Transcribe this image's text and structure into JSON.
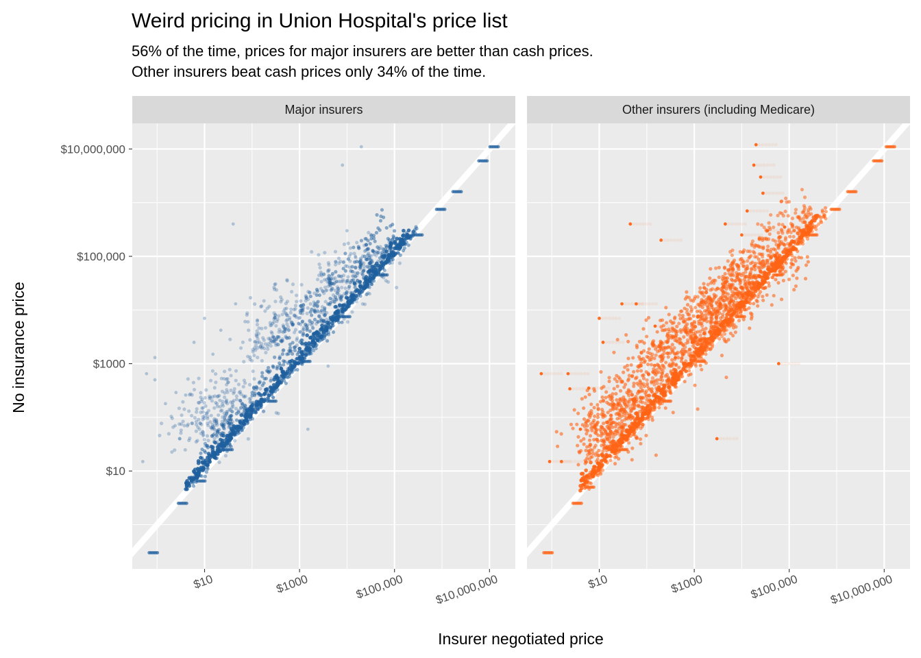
{
  "chart_data": {
    "type": "scatter",
    "title": "Weird pricing in Union Hospital's price list",
    "subtitle_lines": [
      "56% of the time, prices for major insurers are better than cash prices.",
      "Other insurers beat cash prices only 34% of the time."
    ],
    "xlabel": "Insurer negotiated price",
    "ylabel": "No insurance price",
    "x_scale": "log10",
    "y_scale": "log10",
    "xlim": [
      0.3,
      35000000
    ],
    "ylim": [
      0.15,
      30000000
    ],
    "grid": true,
    "legend": "none",
    "reference_line": "y = x",
    "x_ticks": [
      {
        "value": 10,
        "label": "$10"
      },
      {
        "value": 1000,
        "label": "$1000"
      },
      {
        "value": 100000,
        "label": "$100,000"
      },
      {
        "value": 10000000,
        "label": "$10,000,000"
      }
    ],
    "y_ticks": [
      {
        "value": 10,
        "label": "$10"
      },
      {
        "value": 1000,
        "label": "$1000"
      },
      {
        "value": 100000,
        "label": "$100,000"
      },
      {
        "value": 10000000,
        "label": "$10,000,000"
      }
    ],
    "panels": [
      {
        "name": "Major insurers",
        "color": "#1f5f9e",
        "outliers": [
          [
            0.5,
            15
          ],
          [
            0.6,
            650
          ],
          [
            0.9,
            1300
          ],
          [
            0.9,
            500
          ],
          [
            1.5,
            180
          ],
          [
            2.4,
            70
          ],
          [
            2.5,
            290
          ],
          [
            3,
            40
          ],
          [
            4,
            260
          ],
          [
            6,
            2500
          ],
          [
            10,
            7000
          ],
          [
            15,
            1500
          ],
          [
            22,
            4200
          ],
          [
            40,
            400000
          ],
          [
            45,
            13000
          ],
          [
            130,
            6500
          ],
          [
            300,
            30000
          ],
          [
            600,
            1100
          ],
          [
            1500,
            60
          ],
          [
            2000,
            14000
          ],
          [
            4000,
            900
          ],
          [
            8000,
            5000000
          ],
          [
            10000,
            300000
          ],
          [
            20000,
            11000000
          ],
          [
            30000,
            20000
          ],
          [
            15000,
            100000
          ]
        ],
        "clusters": [
          {
            "x": 12,
            "y": 90,
            "spread": 0.35,
            "n": 160
          },
          {
            "x": 40,
            "y": 250,
            "spread": 0.35,
            "n": 90
          },
          {
            "x": 150,
            "y": 2500,
            "spread": 0.3,
            "n": 60
          },
          {
            "x": 300,
            "y": 5000,
            "spread": 0.3,
            "n": 50
          },
          {
            "x": 1000,
            "y": 9000,
            "spread": 0.35,
            "n": 80
          },
          {
            "x": 5000,
            "y": 25000,
            "spread": 0.3,
            "n": 90
          },
          {
            "x": 30000,
            "y": 80000,
            "spread": 0.3,
            "n": 90
          }
        ],
        "bands": [
          {
            "x_from": 5,
            "x_to": 300000,
            "y_ratio": 1.0,
            "spread": 0.12,
            "n": 340
          },
          {
            "x_from": 8,
            "x_to": 100000,
            "y_ratio": 2.5,
            "spread": 0.25,
            "n": 220
          },
          {
            "x_from": 300,
            "x_to": 60000,
            "y_ratio": 8,
            "spread": 0.3,
            "n": 90
          }
        ],
        "dash_rows": [
          [
            0.8,
            0.3
          ],
          [
            3.3,
            2.5
          ],
          [
            8,
            6.5
          ],
          [
            30,
            25
          ],
          [
            250,
            200
          ],
          [
            1300,
            1100
          ],
          [
            9000,
            7500
          ],
          [
            55000,
            45000
          ],
          [
            300000,
            250000
          ],
          [
            900000,
            750000
          ],
          [
            2000000,
            1600000
          ],
          [
            7000000,
            6000000
          ],
          [
            12000000,
            11000000
          ]
        ]
      },
      {
        "name": "Other insurers (including Medicare)",
        "color": "#ff6415",
        "outliers": [
          [
            0.6,
            650
          ],
          [
            0.9,
            15
          ],
          [
            1.6,
            15
          ],
          [
            2.2,
            650
          ],
          [
            2.4,
            340
          ],
          [
            4,
            60
          ],
          [
            6,
            350
          ],
          [
            10,
            7000
          ],
          [
            12,
            2500
          ],
          [
            30,
            13000
          ],
          [
            45,
            400000
          ],
          [
            60,
            13000
          ],
          [
            150,
            5000
          ],
          [
            200,
            200000
          ],
          [
            400,
            1300
          ],
          [
            900,
            2500
          ],
          [
            3000,
            40
          ],
          [
            4500,
            400000
          ],
          [
            10000,
            250000
          ],
          [
            13000,
            700000
          ],
          [
            18000,
            5000000
          ],
          [
            20000,
            12000000
          ],
          [
            25000,
            3000000
          ],
          [
            28000,
            1500000
          ],
          [
            35000,
            300000
          ],
          [
            80000,
            350000
          ],
          [
            60000,
            1000
          ]
        ],
        "clusters": [
          {
            "x": 12,
            "y": 60,
            "spread": 0.35,
            "n": 200
          },
          {
            "x": 40,
            "y": 200,
            "spread": 0.35,
            "n": 150
          },
          {
            "x": 150,
            "y": 1000,
            "spread": 0.35,
            "n": 130
          },
          {
            "x": 600,
            "y": 3000,
            "spread": 0.35,
            "n": 140
          },
          {
            "x": 3000,
            "y": 10000,
            "spread": 0.3,
            "n": 170
          },
          {
            "x": 10000,
            "y": 30000,
            "spread": 0.3,
            "n": 160
          },
          {
            "x": 60000,
            "y": 80000,
            "spread": 0.3,
            "n": 100
          }
        ],
        "bands": [
          {
            "x_from": 5,
            "x_to": 600000,
            "y_ratio": 1.0,
            "spread": 0.12,
            "n": 380
          },
          {
            "x_from": 5,
            "x_to": 300000,
            "y_ratio": 3,
            "spread": 0.3,
            "n": 320
          },
          {
            "x_from": 100,
            "x_to": 100000,
            "y_ratio": 10,
            "spread": 0.3,
            "n": 150
          }
        ],
        "dash_rows": [
          [
            0.8,
            0.3
          ],
          [
            3.3,
            2.5
          ],
          [
            6,
            5
          ],
          [
            30,
            25
          ],
          [
            250,
            200
          ],
          [
            1300,
            1100
          ],
          [
            9000,
            7500
          ],
          [
            55000,
            45000
          ],
          [
            300000,
            250000
          ],
          [
            900000,
            750000
          ],
          [
            2000000,
            1600000
          ],
          [
            7000000,
            6000000
          ],
          [
            13000000,
            11000000
          ]
        ]
      }
    ]
  }
}
